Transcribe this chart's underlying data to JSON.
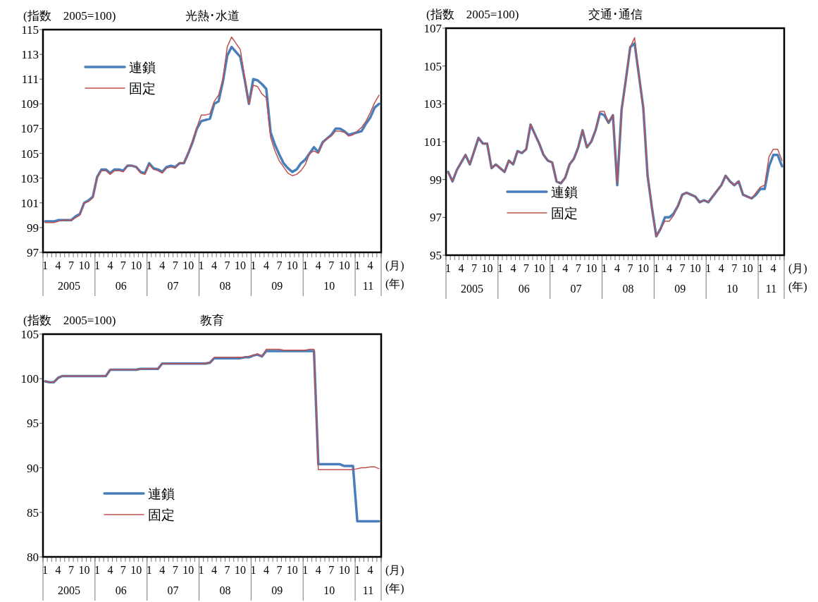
{
  "chart_data": [
    {
      "type": "line",
      "title": "光熱･水道",
      "ylabel": "(指数　2005=100)",
      "xlabel": "(月)",
      "legend": "top left",
      "ylim": [
        97,
        115
      ],
      "yticks": [
        97,
        99,
        101,
        103,
        105,
        107,
        109,
        111,
        113,
        115
      ],
      "categories": [
        "1",
        null,
        null,
        "4",
        null,
        null,
        "7",
        null,
        null,
        "10",
        null,
        null,
        "1",
        null,
        null,
        "4",
        null,
        null,
        "7",
        null,
        null,
        "10",
        null,
        null,
        "1",
        null,
        null,
        "4",
        null,
        null,
        "7",
        null,
        null,
        "10",
        null,
        null,
        "1",
        null,
        null,
        "4",
        null,
        null,
        "7",
        null,
        null,
        "10",
        null,
        null,
        "1",
        null,
        null,
        "4",
        null,
        null,
        "7",
        null,
        null,
        "10",
        null,
        null,
        "1",
        null,
        null,
        "4",
        null,
        null,
        "7",
        null,
        null,
        "10",
        null,
        null,
        "1",
        null,
        null,
        "4",
        null,
        null
      ],
      "annotations": [
        "(年)",
        "2005",
        "06",
        "07",
        "08",
        "09",
        "10",
        "11"
      ],
      "series": [
        {
          "name": "連鎖",
          "color": "#4a7ebb",
          "values": [
            99.5,
            99.5,
            99.5,
            99.6,
            99.6,
            99.6,
            99.6,
            99.9,
            100.1,
            101.0,
            101.2,
            101.5,
            103.1,
            103.7,
            103.7,
            103.4,
            103.7,
            103.7,
            103.6,
            104.0,
            104.0,
            103.9,
            103.5,
            103.4,
            104.2,
            103.8,
            103.7,
            103.5,
            103.9,
            104.0,
            103.9,
            104.2,
            104.2,
            105.0,
            105.9,
            107.0,
            107.6,
            107.7,
            107.8,
            109.0,
            109.2,
            110.8,
            112.9,
            113.6,
            113.2,
            112.8,
            111.0,
            109.0,
            111.0,
            110.9,
            110.6,
            110.2,
            106.7,
            105.7,
            104.9,
            104.2,
            103.8,
            103.5,
            103.7,
            104.2,
            104.5,
            105.0,
            105.5,
            105.1,
            105.9,
            106.2,
            106.5,
            107.0,
            107.0,
            106.8,
            106.5,
            106.6,
            106.7,
            106.8,
            107.4,
            107.9,
            108.7,
            109.0
          ]
        },
        {
          "name": "固定",
          "color": "#c0504d",
          "values": [
            99.4,
            99.4,
            99.4,
            99.5,
            99.6,
            99.6,
            99.6,
            99.8,
            100.0,
            101.0,
            101.1,
            101.4,
            103.0,
            103.6,
            103.6,
            103.3,
            103.6,
            103.6,
            103.5,
            104.0,
            104.0,
            103.9,
            103.4,
            103.3,
            104.1,
            103.7,
            103.6,
            103.4,
            103.8,
            103.9,
            103.8,
            104.2,
            104.2,
            105.0,
            106.0,
            107.1,
            108.1,
            108.1,
            108.2,
            109.2,
            109.7,
            111.0,
            113.6,
            114.4,
            113.9,
            113.4,
            111.2,
            109.0,
            110.5,
            110.4,
            109.8,
            109.5,
            106.3,
            105.2,
            104.4,
            103.9,
            103.4,
            103.2,
            103.3,
            103.6,
            104.1,
            105.0,
            105.2,
            105.0,
            105.8,
            106.2,
            106.4,
            106.8,
            106.8,
            106.7,
            106.4,
            106.5,
            106.8,
            107.1,
            107.6,
            108.3,
            109.1,
            109.7
          ]
        }
      ]
    },
    {
      "type": "line",
      "title": "交通･通信",
      "ylabel": "(指数　2005=100)",
      "xlabel": "(月)",
      "legend": "bottom left",
      "ylim": [
        95,
        107
      ],
      "yticks": [
        95,
        97,
        99,
        101,
        103,
        105,
        107
      ],
      "categories": [
        "1",
        null,
        null,
        "4",
        null,
        null,
        "7",
        null,
        null,
        "10",
        null,
        null,
        "1",
        null,
        null,
        "4",
        null,
        null,
        "7",
        null,
        null,
        "10",
        null,
        null,
        "1",
        null,
        null,
        "4",
        null,
        null,
        "7",
        null,
        null,
        "10",
        null,
        null,
        "1",
        null,
        null,
        "4",
        null,
        null,
        "7",
        null,
        null,
        "10",
        null,
        null,
        "1",
        null,
        null,
        "4",
        null,
        null,
        "7",
        null,
        null,
        "10",
        null,
        null,
        "1",
        null,
        null,
        "4",
        null,
        null,
        "7",
        null,
        null,
        "10",
        null,
        null,
        "1",
        null,
        null,
        "4",
        null,
        null
      ],
      "annotations": [
        "(年)",
        "2005",
        "06",
        "07",
        "08",
        "09",
        "10",
        "11"
      ],
      "series": [
        {
          "name": "連鎖",
          "color": "#4a7ebb",
          "values": [
            99.4,
            98.9,
            99.5,
            99.9,
            100.3,
            99.8,
            100.5,
            101.2,
            100.9,
            100.9,
            99.6,
            99.8,
            99.6,
            99.4,
            100.0,
            99.8,
            100.5,
            100.4,
            100.6,
            101.9,
            101.4,
            100.9,
            100.3,
            100.0,
            99.9,
            98.9,
            98.8,
            99.1,
            99.8,
            100.1,
            100.7,
            101.6,
            100.7,
            101.0,
            101.6,
            102.5,
            102.4,
            102.0,
            102.4,
            98.7,
            102.7,
            104.3,
            106.0,
            106.2,
            104.5,
            102.8,
            99.2,
            97.5,
            96.0,
            96.4,
            97.0,
            97.0,
            97.2,
            97.6,
            98.2,
            98.3,
            98.2,
            98.1,
            97.8,
            97.9,
            97.8,
            98.1,
            98.4,
            98.7,
            99.2,
            98.9,
            98.7,
            98.9,
            98.2,
            98.1,
            98.0,
            98.2,
            98.5,
            98.5,
            99.7,
            100.3,
            100.3,
            99.7
          ]
        },
        {
          "name": "固定",
          "color": "#c0504d",
          "values": [
            99.4,
            98.9,
            99.5,
            99.9,
            100.3,
            99.8,
            100.5,
            101.2,
            100.9,
            100.9,
            99.6,
            99.8,
            99.6,
            99.4,
            100.0,
            99.8,
            100.5,
            100.4,
            100.6,
            101.9,
            101.4,
            100.9,
            100.3,
            100.0,
            99.9,
            98.9,
            98.8,
            99.1,
            99.8,
            100.1,
            100.7,
            101.6,
            100.7,
            101.0,
            101.6,
            102.6,
            102.6,
            102.0,
            102.4,
            98.8,
            102.6,
            104.3,
            106.0,
            106.5,
            104.5,
            102.8,
            99.2,
            97.5,
            96.0,
            96.4,
            96.8,
            96.8,
            97.1,
            97.6,
            98.2,
            98.3,
            98.2,
            98.1,
            97.8,
            97.9,
            97.8,
            98.1,
            98.4,
            98.7,
            99.2,
            98.9,
            98.7,
            98.9,
            98.2,
            98.1,
            98.0,
            98.3,
            98.6,
            98.7,
            100.2,
            100.6,
            100.6,
            100.0
          ]
        }
      ]
    },
    {
      "type": "line",
      "title": "教育",
      "ylabel": "(指数　2005=100)",
      "xlabel": "(月)",
      "legend": "bottom left",
      "ylim": [
        80,
        105
      ],
      "yticks": [
        80,
        85,
        90,
        95,
        100,
        105
      ],
      "categories": [
        "1",
        null,
        null,
        "4",
        null,
        null,
        "7",
        null,
        null,
        "10",
        null,
        null,
        "1",
        null,
        null,
        "4",
        null,
        null,
        "7",
        null,
        null,
        "10",
        null,
        null,
        "1",
        null,
        null,
        "4",
        null,
        null,
        "7",
        null,
        null,
        "10",
        null,
        null,
        "1",
        null,
        null,
        "4",
        null,
        null,
        "7",
        null,
        null,
        "10",
        null,
        null,
        "1",
        null,
        null,
        "4",
        null,
        null,
        "7",
        null,
        null,
        "10",
        null,
        null,
        "1",
        null,
        null,
        "4",
        null,
        null,
        "7",
        null,
        null,
        "10",
        null,
        null,
        "1",
        null,
        null,
        "4",
        null,
        null
      ],
      "annotations": [
        "(年)",
        "2005",
        "06",
        "07",
        "08",
        "09",
        "10",
        "11"
      ],
      "series": [
        {
          "name": "連鎖",
          "color": "#4a7ebb",
          "values": [
            99.7,
            99.6,
            99.6,
            100.1,
            100.3,
            100.3,
            100.3,
            100.3,
            100.3,
            100.3,
            100.3,
            100.3,
            100.3,
            100.3,
            100.3,
            101.0,
            101.0,
            101.0,
            101.0,
            101.0,
            101.0,
            101.0,
            101.1,
            101.1,
            101.1,
            101.1,
            101.1,
            101.7,
            101.7,
            101.7,
            101.7,
            101.7,
            101.7,
            101.7,
            101.7,
            101.7,
            101.7,
            101.7,
            101.8,
            102.3,
            102.3,
            102.3,
            102.3,
            102.3,
            102.3,
            102.3,
            102.4,
            102.4,
            102.6,
            102.7,
            102.5,
            103.1,
            103.1,
            103.1,
            103.1,
            103.1,
            103.1,
            103.1,
            103.1,
            103.1,
            103.1,
            103.1,
            103.1,
            90.4,
            90.4,
            90.4,
            90.4,
            90.4,
            90.4,
            90.2,
            90.2,
            90.2,
            84.0,
            84.0,
            84.0,
            84.0,
            84.0,
            84.0
          ]
        },
        {
          "name": "固定",
          "color": "#c0504d",
          "values": [
            99.7,
            99.6,
            99.6,
            100.1,
            100.3,
            100.3,
            100.3,
            100.3,
            100.3,
            100.3,
            100.3,
            100.3,
            100.3,
            100.3,
            100.3,
            101.0,
            101.0,
            101.0,
            101.0,
            101.0,
            101.0,
            101.0,
            101.1,
            101.1,
            101.1,
            101.1,
            101.1,
            101.7,
            101.7,
            101.7,
            101.7,
            101.7,
            101.7,
            101.7,
            101.7,
            101.7,
            101.7,
            101.7,
            101.8,
            102.4,
            102.4,
            102.4,
            102.4,
            102.4,
            102.4,
            102.4,
            102.4,
            102.5,
            102.6,
            102.8,
            102.5,
            103.3,
            103.3,
            103.3,
            103.3,
            103.2,
            103.2,
            103.2,
            103.2,
            103.2,
            103.2,
            103.3,
            103.3,
            89.8,
            89.8,
            89.8,
            89.8,
            89.8,
            89.8,
            89.8,
            89.8,
            89.8,
            89.9,
            90.0,
            90.0,
            90.1,
            90.1,
            89.9
          ]
        }
      ]
    }
  ]
}
